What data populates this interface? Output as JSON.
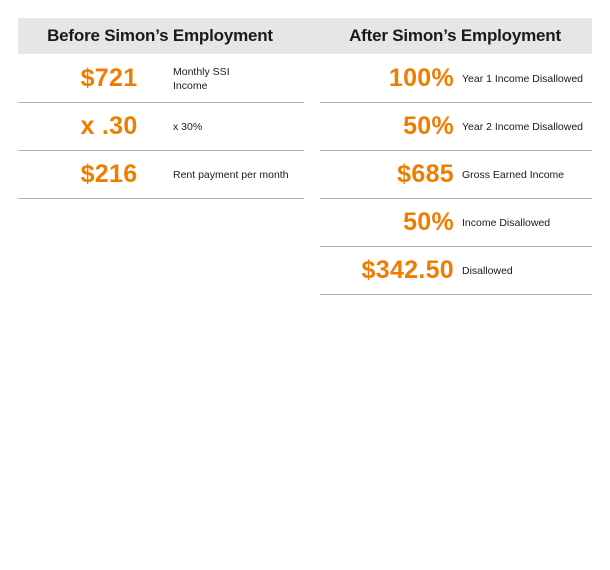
{
  "header": {
    "left_title": "Before Simon’s Employment",
    "right_title": "After Simon’s Employment"
  },
  "accent_color": "#ef7d00",
  "before_rows": [
    {
      "value": "$721",
      "label_line1": "Monthly SSI",
      "label_line2": "Income"
    },
    {
      "value": "x .30",
      "label_line1": "x 30%"
    },
    {
      "value": "$216",
      "label_line1": "Rent payment per month"
    }
  ],
  "after_rows": [
    {
      "value": "100%",
      "label": "Year 1 Income Disallowed"
    },
    {
      "value": "50%",
      "label": "Year 2 Income Disallowed"
    },
    {
      "value": "$685",
      "label": "Gross Earned Income"
    },
    {
      "value": "50%",
      "label": "Income Disallowed"
    },
    {
      "value": "$342.50",
      "label": "Disallowed"
    }
  ]
}
